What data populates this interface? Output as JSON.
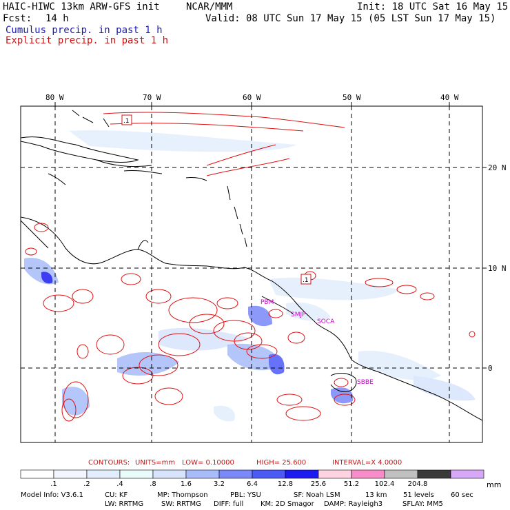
{
  "header": {
    "model": "HAIC-HIWC 13km ARW-GFS init",
    "org": "NCAR/MMM",
    "init": "Init: 18 UTC Sat 16 May 15",
    "fcst_label": "Fcst:",
    "fcst_value": "14 h",
    "valid": "Valid: 08 UTC Sun 17 May 15 (05 LST Sun 17 May 15)",
    "cumulus": "Cumulus precip. in past 1 h",
    "explicit": "Explicit precip. in past 1 h"
  },
  "map": {
    "lon_labels": [
      "80 W",
      "70 W",
      "60 W",
      "50 W",
      "40 W"
    ],
    "lat_labels": [
      "20 N",
      "10 N",
      "0"
    ],
    "box_label": ".1",
    "stations": [
      "PBM",
      "SMJP",
      "SOCA",
      "SBBE"
    ],
    "colors": {
      "explicit_contour": "#e01010",
      "coast": "#000000",
      "station": "#cc00cc"
    }
  },
  "contours": {
    "label": "CONTOURS:",
    "units": "UNITS=mm",
    "low": "LOW= 0.10000",
    "high": "HIGH= 25.600",
    "interval": "INTERVAL=X 4.0000"
  },
  "colorbar": {
    "labels": [
      ".1",
      ".2",
      ".4",
      ".8",
      "1.6",
      "3.2",
      "6.4",
      "12.8",
      "25.6",
      "51.2",
      "102.4",
      "204.8"
    ],
    "unit": "mm",
    "colors": [
      "#ffffff",
      "#f4f6fe",
      "#e2eefd",
      "#eafbfb",
      "#d8e4fc",
      "#a8bcfa",
      "#7a88f8",
      "#4c5af6",
      "#1c1cf0",
      "#ffd4e0",
      "#f78cc8",
      "#c0c0c0",
      "#3a3a3a",
      "#d8a8f8"
    ]
  },
  "footer": {
    "line1": [
      "Model Info: V3.6.1",
      "CU: KF",
      "MP: Thompson",
      "PBL: YSU",
      "SF: Noah LSM",
      "13 km",
      "51 levels",
      "60 sec"
    ],
    "line2": [
      "LW: RRTMG",
      "SW: RRTMG",
      "DIFF: full",
      "KM: 2D Smagor",
      "DAMP: Rayleigh3",
      "SFLAY: MM5"
    ]
  }
}
